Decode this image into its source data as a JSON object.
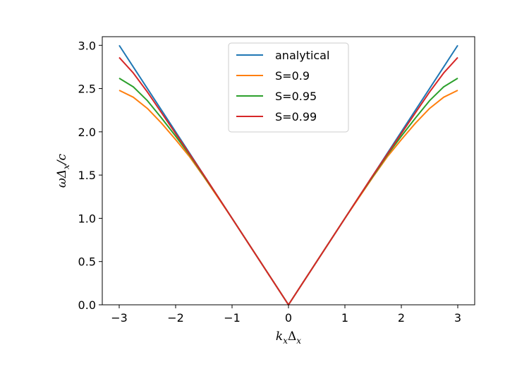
{
  "chart_data": {
    "type": "line",
    "title": "",
    "xlabel": "k_xΔ_x",
    "xlabel_parts": {
      "main": "k",
      "sub1": "x",
      "mid": "Δ",
      "sub2": "x"
    },
    "ylabel": "ωΔ_x/c",
    "ylabel_parts": {
      "main": "ωΔ",
      "sub": "x",
      "tail": "/c"
    },
    "xlim": [
      -3.3,
      3.3
    ],
    "ylim": [
      0.0,
      3.1
    ],
    "xticks": [
      -3,
      -2,
      -1,
      0,
      1,
      2,
      3
    ],
    "xtick_labels": [
      "−3",
      "−2",
      "−1",
      "0",
      "1",
      "2",
      "3"
    ],
    "yticks": [
      0.0,
      0.5,
      1.0,
      1.5,
      2.0,
      2.5,
      3.0
    ],
    "ytick_labels": [
      "0.0",
      "0.5",
      "1.0",
      "1.5",
      "2.0",
      "2.5",
      "3.0"
    ],
    "grid": false,
    "legend_position": "upper center",
    "x": [
      -3.0,
      -2.75,
      -2.5,
      -2.25,
      -2.0,
      -1.75,
      -1.5,
      -1.25,
      -1.0,
      -0.75,
      -0.5,
      -0.25,
      0.0,
      0.25,
      0.5,
      0.75,
      1.0,
      1.25,
      1.5,
      1.75,
      2.0,
      2.25,
      2.5,
      2.75,
      3.0
    ],
    "series": [
      {
        "name": "analytical",
        "color": "#1f77b4",
        "values": [
          3.0,
          2.75,
          2.5,
          2.25,
          2.0,
          1.75,
          1.5,
          1.25,
          1.0,
          0.75,
          0.5,
          0.25,
          0.0,
          0.25,
          0.5,
          0.75,
          1.0,
          1.25,
          1.5,
          1.75,
          2.0,
          2.25,
          2.5,
          2.75,
          3.0
        ]
      },
      {
        "name": "S=0.9",
        "color": "#ff7f0e",
        "values": [
          2.48,
          2.4,
          2.27,
          2.1,
          1.91,
          1.71,
          1.48,
          1.24,
          1.0,
          0.75,
          0.5,
          0.25,
          0.0,
          0.25,
          0.5,
          0.75,
          1.0,
          1.24,
          1.48,
          1.71,
          1.91,
          2.1,
          2.27,
          2.4,
          2.48
        ]
      },
      {
        "name": "S=0.95",
        "color": "#2ca02c",
        "values": [
          2.62,
          2.52,
          2.36,
          2.16,
          1.95,
          1.73,
          1.49,
          1.25,
          1.0,
          0.75,
          0.5,
          0.25,
          0.0,
          0.25,
          0.5,
          0.75,
          1.0,
          1.25,
          1.49,
          1.73,
          1.95,
          2.16,
          2.36,
          2.52,
          2.62
        ]
      },
      {
        "name": "S=0.99",
        "color": "#d62728",
        "values": [
          2.86,
          2.68,
          2.46,
          2.22,
          1.98,
          1.74,
          1.5,
          1.25,
          1.0,
          0.75,
          0.5,
          0.25,
          0.0,
          0.25,
          0.5,
          0.75,
          1.0,
          1.25,
          1.5,
          1.74,
          1.98,
          2.22,
          2.46,
          2.68,
          2.86
        ]
      }
    ]
  }
}
